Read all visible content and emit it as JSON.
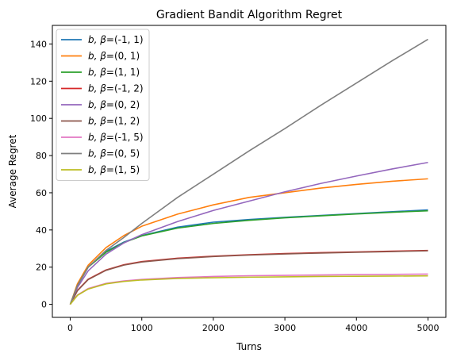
{
  "chart_data": {
    "type": "line",
    "title": "Gradient Bandit Algorithm Regret",
    "xlabel": "Turns",
    "ylabel": "Average Regret",
    "xlim": [
      -250,
      5250
    ],
    "ylim": [
      -7,
      150
    ],
    "xticks": [
      0,
      1000,
      2000,
      3000,
      4000,
      5000
    ],
    "yticks": [
      0,
      20,
      40,
      60,
      80,
      100,
      120,
      140
    ],
    "grid": false,
    "legend_position": "upper-left",
    "series": [
      {
        "name": "b, β=(-1, 1)",
        "label_prefix": "b, β",
        "label_suffix": "=(-1, 1)",
        "color": "#1f77b4",
        "x": [
          0,
          100,
          250,
          500,
          750,
          1000,
          1500,
          2000,
          2500,
          3000,
          3500,
          4000,
          4500,
          5000
        ],
        "y": [
          0,
          10,
          20,
          28.5,
          33.5,
          37,
          41.5,
          44.2,
          45.6,
          46.8,
          47.8,
          48.8,
          49.8,
          50.8
        ]
      },
      {
        "name": "b, β=(0, 1)",
        "label_prefix": "b, β",
        "label_suffix": "=(0, 1)",
        "color": "#ff7f0e",
        "x": [
          0,
          100,
          250,
          500,
          750,
          1000,
          1500,
          2000,
          2500,
          3000,
          3500,
          4000,
          4500,
          5000
        ],
        "y": [
          0,
          11,
          21,
          30.5,
          37,
          42,
          48.5,
          53.5,
          57.5,
          60,
          62.5,
          64.5,
          66.2,
          67.5
        ]
      },
      {
        "name": "b, β=(1, 1)",
        "label_prefix": "b, β",
        "label_suffix": "=(1, 1)",
        "color": "#2ca02c",
        "x": [
          0,
          100,
          250,
          500,
          750,
          1000,
          1500,
          2000,
          2500,
          3000,
          3500,
          4000,
          4500,
          5000
        ],
        "y": [
          0,
          10,
          20,
          28,
          33.2,
          36.8,
          41,
          43.5,
          45.2,
          46.5,
          47.6,
          48.6,
          49.5,
          50.3
        ]
      },
      {
        "name": "b, β=(-1, 2)",
        "label_prefix": "b, β",
        "label_suffix": "=(-1, 2)",
        "color": "#d62728",
        "x": [
          0,
          100,
          250,
          500,
          750,
          1000,
          1500,
          2000,
          2500,
          3000,
          3500,
          4000,
          4500,
          5000
        ],
        "y": [
          0,
          7.5,
          13.5,
          18.5,
          21.3,
          23,
          24.8,
          25.9,
          26.7,
          27.3,
          27.8,
          28.2,
          28.6,
          29
        ]
      },
      {
        "name": "b, β=(0, 2)",
        "label_prefix": "b, β",
        "label_suffix": "=(0, 2)",
        "color": "#9467bd",
        "x": [
          0,
          100,
          250,
          500,
          750,
          1000,
          1500,
          2000,
          2500,
          3000,
          3500,
          4000,
          4500,
          5000
        ],
        "y": [
          0,
          9,
          18,
          27,
          33,
          37.5,
          44.5,
          50.5,
          55.5,
          60.5,
          65,
          69,
          72.8,
          76.3
        ]
      },
      {
        "name": "b, β=(1, 2)",
        "label_prefix": "b, β",
        "label_suffix": "=(1, 2)",
        "color": "#8c564b",
        "x": [
          0,
          100,
          250,
          500,
          750,
          1000,
          1500,
          2000,
          2500,
          3000,
          3500,
          4000,
          4500,
          5000
        ],
        "y": [
          0,
          7.3,
          13.3,
          18.3,
          21.1,
          22.8,
          24.6,
          25.7,
          26.5,
          27.1,
          27.6,
          28,
          28.4,
          28.8
        ]
      },
      {
        "name": "b, β=(-1, 5)",
        "label_prefix": "b, β",
        "label_suffix": "=(-1, 5)",
        "color": "#e377c2",
        "x": [
          0,
          100,
          250,
          500,
          750,
          1000,
          1500,
          2000,
          2500,
          3000,
          3500,
          4000,
          4500,
          5000
        ],
        "y": [
          0,
          5,
          8.5,
          11.3,
          12.6,
          13.4,
          14.4,
          15,
          15.4,
          15.6,
          15.8,
          16,
          16.1,
          16.3
        ]
      },
      {
        "name": "b, β=(0, 5)",
        "label_prefix": "b, β",
        "label_suffix": "=(0, 5)",
        "color": "#7f7f7f",
        "x": [
          0,
          100,
          250,
          500,
          750,
          1000,
          1500,
          2000,
          2500,
          3000,
          3500,
          4000,
          4500,
          5000
        ],
        "y": [
          0,
          10,
          20,
          29,
          36,
          43.5,
          57.5,
          70,
          82.5,
          94.5,
          107,
          119,
          131,
          142.5
        ]
      },
      {
        "name": "b, β=(1, 5)",
        "label_prefix": "b, β",
        "label_suffix": "=(1, 5)",
        "color": "#bcbd22",
        "x": [
          0,
          100,
          250,
          500,
          750,
          1000,
          1500,
          2000,
          2500,
          3000,
          3500,
          4000,
          4500,
          5000
        ],
        "y": [
          0,
          4.8,
          8.2,
          11,
          12.3,
          13.1,
          13.9,
          14.3,
          14.6,
          14.8,
          15,
          15.1,
          15.2,
          15.3
        ]
      }
    ]
  }
}
